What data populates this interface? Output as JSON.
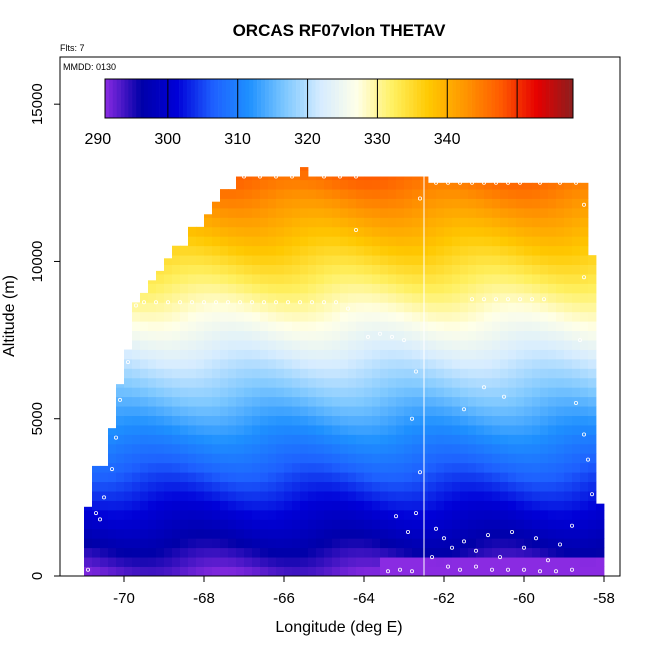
{
  "chart_data": {
    "type": "heatmap",
    "title": "ORCAS RF07vlon THETAV",
    "flights_label": "Flts: 7",
    "date_label": "MMDD: 0130",
    "xlabel": "Longitude (deg E)",
    "ylabel": "Altitude (m)",
    "xlim": [
      -71.6,
      -57.6
    ],
    "ylim": [
      0,
      16500
    ],
    "x_ticks": [
      -70,
      -68,
      -66,
      -64,
      -62,
      -60,
      -58
    ],
    "x_tick_labels": [
      "-70",
      "-68",
      "-66",
      "-64",
      "-62",
      "-60",
      "-58"
    ],
    "y_ticks": [
      0,
      5000,
      10000,
      15000
    ],
    "y_tick_labels": [
      "0",
      "5000",
      "10000",
      "15000"
    ],
    "colorbar": {
      "range": [
        281,
        348
      ],
      "ticks": [
        290,
        300,
        310,
        320,
        330,
        340
      ],
      "tick_labels": [
        "290",
        "300",
        "310",
        "320",
        "330",
        "340"
      ],
      "colors": [
        "#8a2be2",
        "#0000a8",
        "#0000d8",
        "#1e60ff",
        "#1e90ff",
        "#7ec8ff",
        "#d6ecff",
        "#ffffe8",
        "#fff060",
        "#ffc800",
        "#ff9600",
        "#ff5a00",
        "#e60000",
        "#8c1e1e"
      ]
    },
    "field": {
      "lon_range": [
        -71.0,
        -58.0
      ],
      "alt_step": 300,
      "theta_surface": 282,
      "theta_gradient_k_per_km": 4.3,
      "top_profile": [
        [
          -71.0,
          2200
        ],
        [
          -70.8,
          2200
        ],
        [
          -70.8,
          3500
        ],
        [
          -70.4,
          3500
        ],
        [
          -70.4,
          4700
        ],
        [
          -70.2,
          4700
        ],
        [
          -70.2,
          6100
        ],
        [
          -70.0,
          6100
        ],
        [
          -70.0,
          7200
        ],
        [
          -69.8,
          7200
        ],
        [
          -69.8,
          8700
        ],
        [
          -69.6,
          8700
        ],
        [
          -69.6,
          9000
        ],
        [
          -69.4,
          9000
        ],
        [
          -69.4,
          9400
        ],
        [
          -69.2,
          9400
        ],
        [
          -69.2,
          9700
        ],
        [
          -69.0,
          9700
        ],
        [
          -69.0,
          10100
        ],
        [
          -68.8,
          10100
        ],
        [
          -68.8,
          10500
        ],
        [
          -68.4,
          10500
        ],
        [
          -68.4,
          11100
        ],
        [
          -68.0,
          11100
        ],
        [
          -68.0,
          11500
        ],
        [
          -67.8,
          11500
        ],
        [
          -67.8,
          11900
        ],
        [
          -67.6,
          11900
        ],
        [
          -67.6,
          12300
        ],
        [
          -67.2,
          12300
        ],
        [
          -67.2,
          12700
        ],
        [
          -65.6,
          12700
        ],
        [
          -65.6,
          13000
        ],
        [
          -65.4,
          13000
        ],
        [
          -65.4,
          12700
        ],
        [
          -62.4,
          12700
        ],
        [
          -62.4,
          12500
        ],
        [
          -58.4,
          12500
        ],
        [
          -58.4,
          10200
        ],
        [
          -58.2,
          10200
        ],
        [
          -58.2,
          2300
        ],
        [
          -58.0,
          2300
        ],
        [
          -58.0,
          0
        ]
      ],
      "flight_track_lon": -62.5
    },
    "observation_points": [
      [
        -70.9,
        200
      ],
      [
        -70.7,
        2000
      ],
      [
        -70.6,
        1800
      ],
      [
        -70.5,
        2500
      ],
      [
        -70.3,
        3400
      ],
      [
        -70.2,
        4400
      ],
      [
        -70.1,
        5600
      ],
      [
        -69.9,
        6800
      ],
      [
        -69.7,
        8600
      ],
      [
        -69.5,
        8700
      ],
      [
        -69.2,
        8700
      ],
      [
        -68.9,
        8700
      ],
      [
        -68.6,
        8700
      ],
      [
        -68.3,
        8700
      ],
      [
        -68.0,
        8700
      ],
      [
        -67.7,
        8700
      ],
      [
        -67.4,
        8700
      ],
      [
        -67.1,
        8700
      ],
      [
        -66.8,
        8700
      ],
      [
        -66.5,
        8700
      ],
      [
        -66.2,
        8700
      ],
      [
        -65.9,
        8700
      ],
      [
        -65.6,
        8700
      ],
      [
        -65.3,
        8700
      ],
      [
        -65.0,
        8700
      ],
      [
        -64.7,
        8700
      ],
      [
        -64.4,
        8500
      ],
      [
        -64.2,
        11000
      ],
      [
        -63.9,
        7600
      ],
      [
        -63.6,
        7700
      ],
      [
        -63.3,
        7600
      ],
      [
        -63.0,
        7500
      ],
      [
        -62.8,
        5000
      ],
      [
        -62.7,
        6500
      ],
      [
        -62.6,
        12000
      ],
      [
        -67.0,
        12700
      ],
      [
        -66.6,
        12700
      ],
      [
        -66.2,
        12700
      ],
      [
        -65.8,
        12700
      ],
      [
        -65.0,
        12700
      ],
      [
        -64.6,
        12700
      ],
      [
        -64.2,
        12700
      ],
      [
        -62.2,
        12500
      ],
      [
        -61.9,
        12500
      ],
      [
        -61.6,
        12500
      ],
      [
        -61.3,
        12500
      ],
      [
        -61.0,
        12500
      ],
      [
        -60.7,
        12500
      ],
      [
        -60.4,
        12500
      ],
      [
        -60.1,
        12500
      ],
      [
        -59.6,
        12500
      ],
      [
        -59.1,
        12500
      ],
      [
        -58.7,
        12500
      ],
      [
        -58.5,
        11800
      ],
      [
        -58.5,
        9500
      ],
      [
        -58.6,
        7500
      ],
      [
        -58.7,
        5500
      ],
      [
        -58.5,
        4500
      ],
      [
        -58.4,
        3700
      ],
      [
        -58.3,
        2600
      ],
      [
        -61.3,
        8800
      ],
      [
        -61.0,
        8800
      ],
      [
        -60.7,
        8800
      ],
      [
        -60.4,
        8800
      ],
      [
        -60.1,
        8800
      ],
      [
        -59.8,
        8800
      ],
      [
        -59.5,
        8800
      ],
      [
        -61.5,
        5300
      ],
      [
        -60.5,
        5700
      ],
      [
        -61.0,
        6000
      ],
      [
        -62.2,
        1500
      ],
      [
        -62.0,
        1200
      ],
      [
        -61.8,
        900
      ],
      [
        -61.5,
        1100
      ],
      [
        -61.2,
        800
      ],
      [
        -60.9,
        1300
      ],
      [
        -60.6,
        600
      ],
      [
        -60.3,
        1400
      ],
      [
        -60.0,
        900
      ],
      [
        -59.7,
        1200
      ],
      [
        -59.4,
        500
      ],
      [
        -59.1,
        1000
      ],
      [
        -58.8,
        1600
      ],
      [
        -62.3,
        600
      ],
      [
        -61.9,
        300
      ],
      [
        -61.6,
        200
      ],
      [
        -61.2,
        300
      ],
      [
        -60.8,
        200
      ],
      [
        -60.4,
        200
      ],
      [
        -60.0,
        200
      ],
      [
        -59.6,
        150
      ],
      [
        -59.2,
        150
      ],
      [
        -58.8,
        200
      ],
      [
        -62.8,
        150
      ],
      [
        -63.1,
        200
      ],
      [
        -63.4,
        150
      ],
      [
        -62.9,
        1400
      ],
      [
        -63.2,
        1900
      ],
      [
        -62.6,
        3300
      ],
      [
        -62.7,
        2000
      ]
    ],
    "grid": false,
    "legend": "top (colorbar)"
  }
}
